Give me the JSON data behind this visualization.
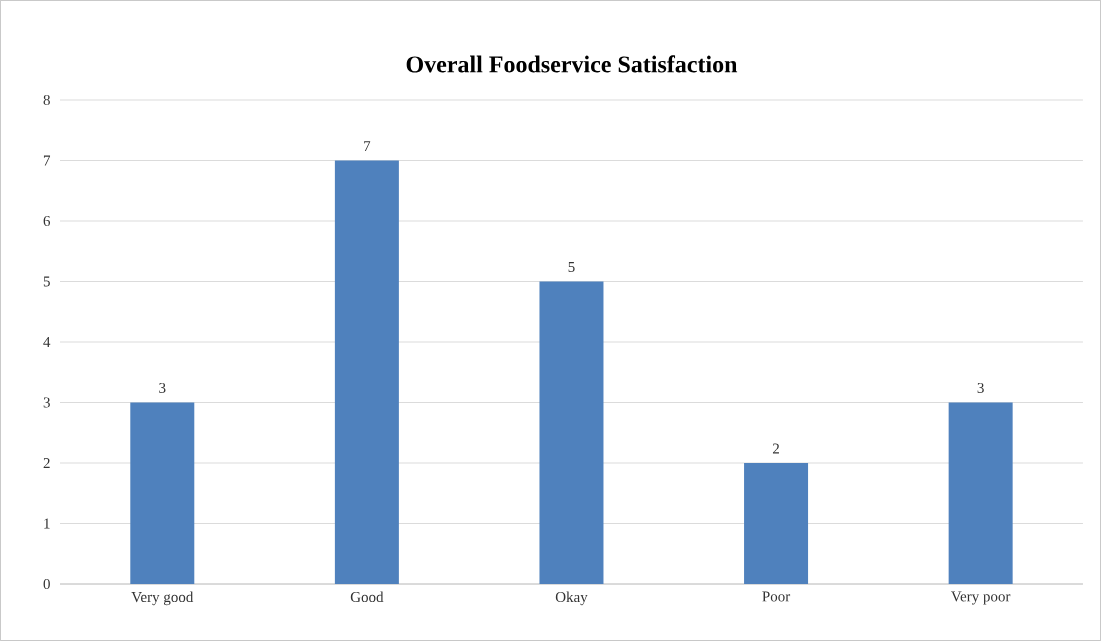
{
  "chart_data": {
    "type": "bar",
    "title": "Overall Foodservice Satisfaction",
    "categories": [
      "Very good",
      "Good",
      "Okay",
      "Poor",
      "Very poor"
    ],
    "values": [
      3,
      7,
      5,
      2,
      3
    ],
    "color": "#4f81bd",
    "ylim": [
      0,
      8
    ],
    "yticks": [
      0,
      1,
      2,
      3,
      4,
      5,
      6,
      7,
      8
    ],
    "grid": "y",
    "data_labels": true
  }
}
